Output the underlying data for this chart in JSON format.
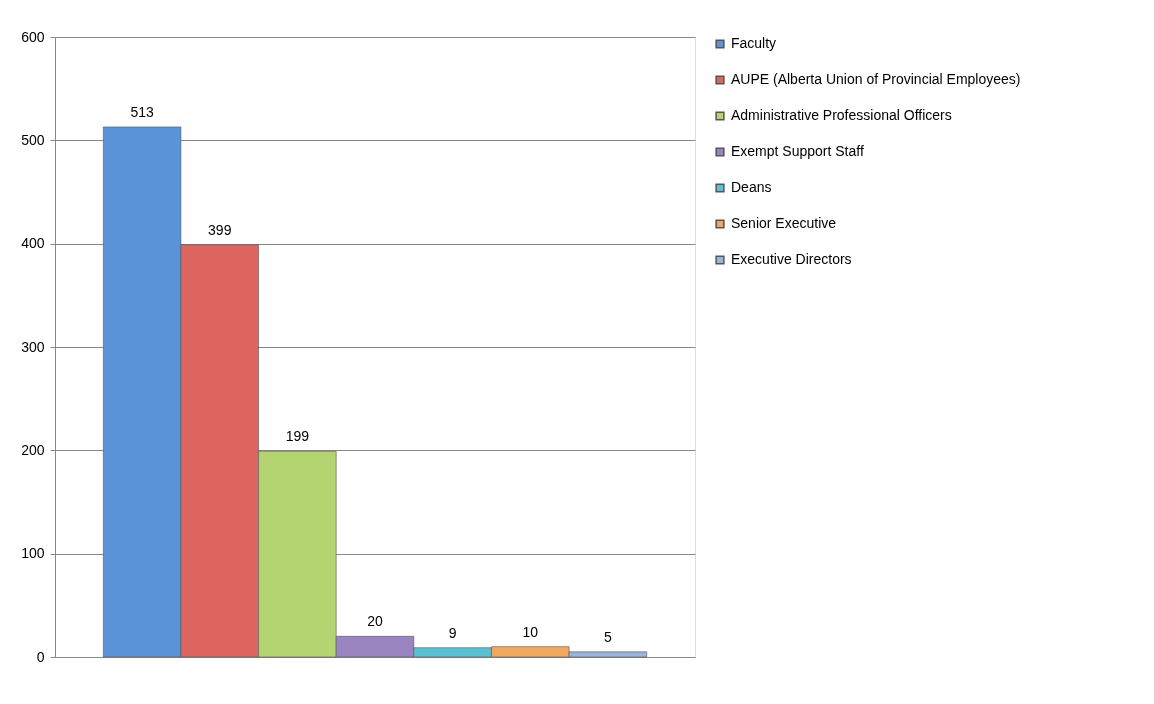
{
  "chart_data": {
    "type": "bar",
    "categories": [
      null
    ],
    "series": [
      {
        "name": "Faculty",
        "color": "#5b93d8",
        "values": [
          513
        ]
      },
      {
        "name": "AUPE (Alberta Union of Provincial Employees)",
        "color": "#dc6560",
        "values": [
          399
        ]
      },
      {
        "name": "Administrative Professional Officers",
        "color": "#b4d472",
        "values": [
          199
        ]
      },
      {
        "name": "Exempt Support Staff",
        "color": "#9a85c0",
        "values": [
          20
        ]
      },
      {
        "name": "Deans",
        "color": "#5cc0d4",
        "values": [
          9
        ]
      },
      {
        "name": "Senior Executive",
        "color": "#f0a860",
        "values": [
          10
        ]
      },
      {
        "name": "Executive Directors",
        "color": "#9ab4dc",
        "values": [
          5
        ]
      }
    ],
    "ylim": [
      0,
      600
    ],
    "yticks": [
      0,
      100,
      200,
      300,
      400,
      500,
      600
    ],
    "grid": "y",
    "legend": "right",
    "data_labels": true
  }
}
